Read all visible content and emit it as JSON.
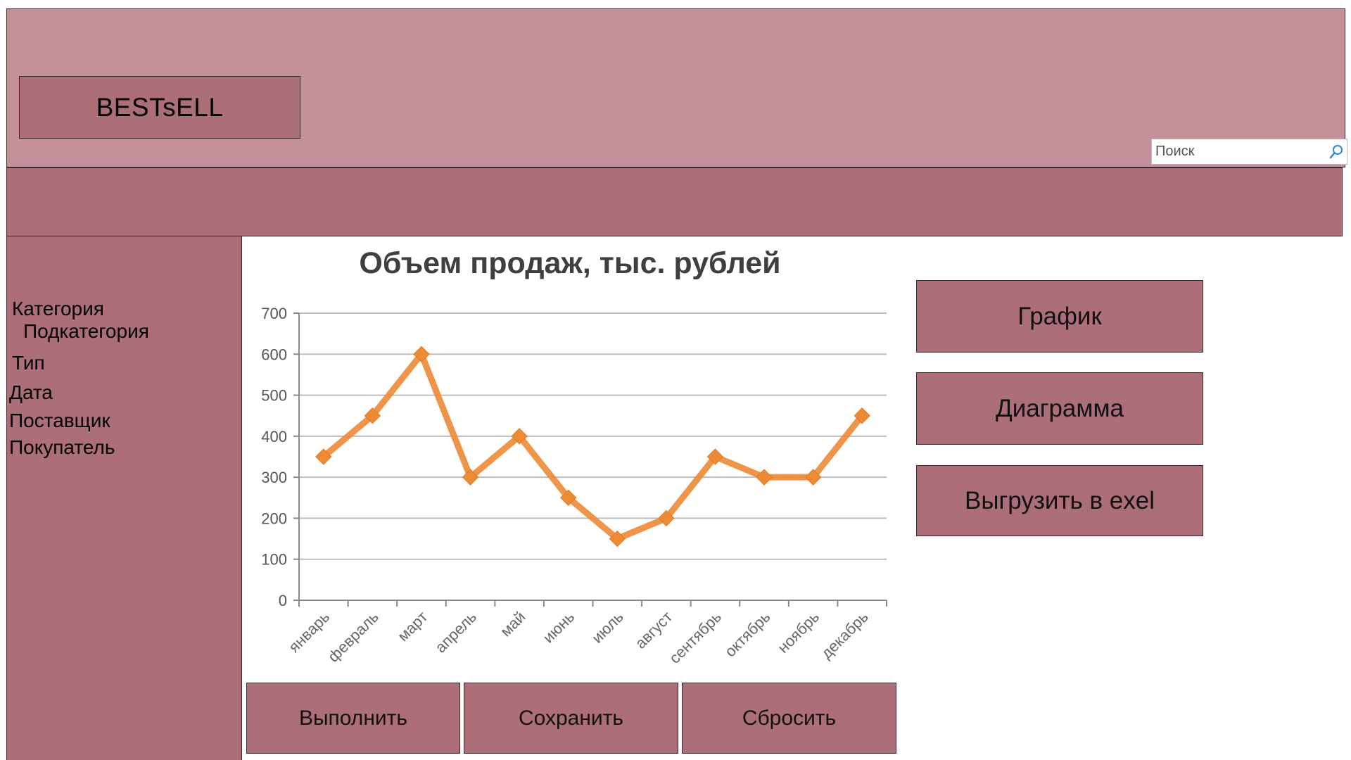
{
  "header": {
    "logo": "BESTsELL",
    "search": {
      "placeholder": "Поиск",
      "value": ""
    }
  },
  "sidebar": {
    "items": [
      {
        "label": "Категория"
      },
      {
        "label": "Подкатегория"
      },
      {
        "label": "Тип"
      },
      {
        "label": "Дата"
      },
      {
        "label": "Поставщик"
      },
      {
        "label": "Покупатель"
      }
    ]
  },
  "actions": {
    "execute": "Выполнить",
    "save": "Сохранить",
    "reset": "Сбросить"
  },
  "view_buttons": {
    "graph": "График",
    "diagram": "Диаграмма",
    "export": "Выгрузить в exel"
  },
  "colors": {
    "header_bg": "#c4919a",
    "panel_bg": "#ac6e78",
    "series": "#ec8a36"
  },
  "chart_data": {
    "type": "line",
    "title": "Объем продаж, тыс. рублей",
    "xlabel": "",
    "ylabel": "",
    "ylim": [
      0,
      700
    ],
    "yticks": [
      0,
      100,
      200,
      300,
      400,
      500,
      600,
      700
    ],
    "grid": true,
    "marker": "diamond",
    "categories": [
      "январь",
      "февраль",
      "март",
      "апрель",
      "май",
      "июнь",
      "июль",
      "август",
      "сентябрь",
      "октябрь",
      "ноябрь",
      "декабрь"
    ],
    "values": [
      350,
      450,
      600,
      300,
      400,
      250,
      150,
      200,
      350,
      300,
      300,
      450
    ]
  }
}
